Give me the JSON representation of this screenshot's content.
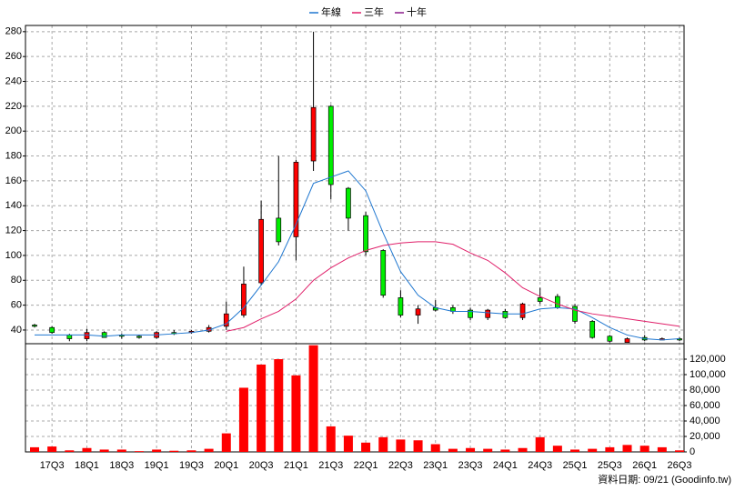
{
  "chart_data": [
    {
      "type": "candlestick",
      "categories": [
        null,
        "17Q3",
        null,
        "18Q1",
        null,
        "18Q3",
        null,
        "19Q1",
        null,
        "19Q3",
        null,
        "20Q1",
        null,
        "20Q3",
        null,
        "21Q1",
        null,
        "21Q3",
        null,
        "22Q1",
        null,
        "22Q3",
        null,
        "23Q1",
        null,
        "23Q3",
        null,
        "24Q1",
        null,
        "24Q3",
        null,
        "25Q1",
        null,
        "25Q3",
        null,
        "26Q1",
        null,
        "26Q3"
      ],
      "open": [
        44,
        42,
        36,
        33,
        38,
        36,
        35,
        34,
        38,
        38,
        39,
        43,
        52,
        78,
        130,
        115,
        176,
        220,
        154,
        132,
        104,
        66,
        52,
        58,
        58,
        56,
        50,
        55,
        50,
        66,
        67,
        59,
        47,
        35,
        30,
        34,
        32,
        33
      ],
      "high": [
        45,
        43,
        37,
        41,
        39,
        37,
        36,
        39,
        40,
        40,
        44,
        63,
        91,
        144,
        180,
        177,
        280,
        221,
        155,
        135,
        105,
        72,
        60,
        64,
        60,
        58,
        57,
        57,
        62,
        74,
        69,
        61,
        48,
        36,
        34,
        36,
        34,
        34
      ],
      "low": [
        42,
        37,
        31,
        31,
        34,
        33,
        33,
        33,
        36,
        37,
        38,
        40,
        50,
        76,
        108,
        96,
        168,
        145,
        120,
        100,
        66,
        50,
        45,
        55,
        53,
        48,
        48,
        49,
        48,
        61,
        57,
        45,
        33,
        30,
        30,
        31,
        32,
        31
      ],
      "close": [
        43,
        38,
        33,
        38,
        34,
        35,
        34,
        38,
        37,
        39,
        42,
        53,
        77,
        129,
        111,
        175,
        219,
        157,
        130,
        103,
        68,
        52,
        57,
        56,
        55,
        50,
        56,
        50,
        61,
        63,
        58,
        47,
        34,
        31,
        33,
        32,
        33,
        32
      ],
      "up_color": "#ff0000",
      "down_color": "#00ee00",
      "series": [
        {
          "name": "年線",
          "color": "#1f77d0",
          "values": [
            36,
            36,
            36,
            36,
            35,
            36,
            36,
            36,
            37,
            38,
            40,
            45,
            58,
            76,
            95,
            125,
            158,
            163,
            168,
            152,
            118,
            87,
            68,
            58,
            55,
            55,
            54,
            53,
            53,
            57,
            58,
            57,
            50,
            42,
            36,
            33,
            32,
            33
          ]
        },
        {
          "name": "三年",
          "color": "#e0206a",
          "values": [
            null,
            null,
            null,
            null,
            null,
            null,
            null,
            null,
            null,
            null,
            null,
            39,
            42,
            49,
            55,
            65,
            80,
            90,
            98,
            104,
            108,
            110,
            111,
            111,
            109,
            102,
            96,
            86,
            74,
            67,
            61,
            56,
            53,
            51,
            49,
            47,
            45,
            43
          ]
        },
        {
          "name": "十年",
          "color": "#8b1a8b",
          "values": [
            null,
            null,
            null,
            null,
            null,
            null,
            null,
            null,
            null,
            null,
            null,
            null,
            null,
            null,
            null,
            null,
            null,
            null,
            null,
            null,
            null,
            null,
            null,
            null,
            null,
            null,
            null,
            null,
            null,
            null,
            null,
            null,
            null,
            null,
            null,
            null,
            null,
            null
          ]
        }
      ],
      "ylim": [
        29,
        285
      ],
      "yticks": [
        40,
        60,
        80,
        100,
        120,
        140,
        160,
        180,
        200,
        220,
        240,
        260,
        280
      ],
      "grid": true,
      "legend": "top"
    },
    {
      "type": "bar",
      "color": "#ff0000",
      "values": [
        6000,
        7000,
        2000,
        5000,
        3000,
        3000,
        1000,
        3000,
        1500,
        2000,
        4000,
        24000,
        83000,
        113000,
        120000,
        99000,
        138000,
        33000,
        21000,
        12000,
        19000,
        16000,
        15000,
        10000,
        4000,
        5000,
        4000,
        3000,
        5000,
        19000,
        8000,
        3000,
        4000,
        6000,
        9000,
        8000,
        6000,
        2000
      ],
      "ylim": [
        0,
        140000
      ],
      "yticks": [
        0,
        {
          "value": 20000,
          "label": "20,000"
        },
        {
          "value": 40000,
          "label": "40,000"
        },
        {
          "value": 60000,
          "label": "60,000"
        },
        {
          "value": 80000,
          "label": "80,000"
        },
        {
          "value": 100000,
          "label": "100,000"
        },
        {
          "value": 120000,
          "label": "120,000"
        }
      ],
      "grid": true
    },
    {
      "footer": "資料日期: 09/21 (Goodinfo.tw)"
    }
  ]
}
